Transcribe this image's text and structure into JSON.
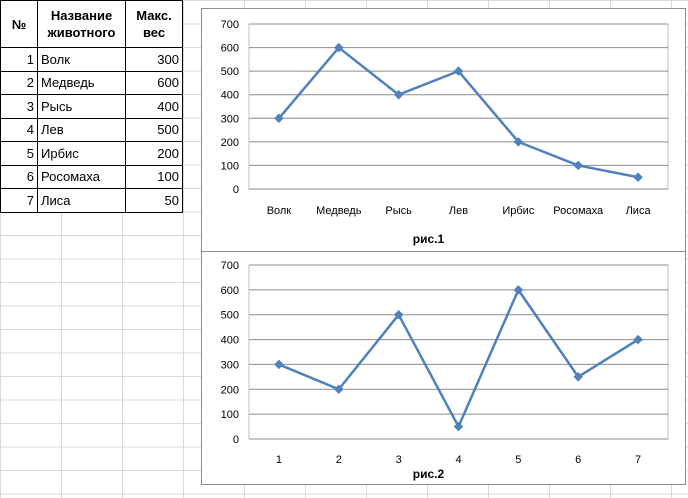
{
  "table": {
    "headers": {
      "num": "№",
      "name": "Название животного",
      "weight": "Макс. вес"
    },
    "rows": [
      {
        "num": "1",
        "name": "Волк",
        "weight": "300"
      },
      {
        "num": "2",
        "name": "Медведь",
        "weight": "600"
      },
      {
        "num": "3",
        "name": "Рысь",
        "weight": "400"
      },
      {
        "num": "4",
        "name": "Лев",
        "weight": "500"
      },
      {
        "num": "5",
        "name": "Ирбис",
        "weight": "200"
      },
      {
        "num": "6",
        "name": "Росомаха",
        "weight": "100"
      },
      {
        "num": "7",
        "name": "Лиса",
        "weight": "50"
      }
    ]
  },
  "chart_data": [
    {
      "type": "line",
      "caption": "рис.1",
      "categories": [
        "Волк",
        "Медведь",
        "Рысь",
        "Лев",
        "Ирбис",
        "Росомаха",
        "Лиса"
      ],
      "values": [
        300,
        600,
        400,
        500,
        200,
        100,
        50
      ],
      "ylim": [
        0,
        700
      ],
      "yticks": [
        0,
        100,
        200,
        300,
        400,
        500,
        600,
        700
      ],
      "grid": true,
      "marker": "diamond",
      "color": "#4f81bd",
      "legend": "none"
    },
    {
      "type": "line",
      "caption": "рис.2",
      "categories": [
        "1",
        "2",
        "3",
        "4",
        "5",
        "6",
        "7"
      ],
      "values": [
        300,
        200,
        500,
        50,
        600,
        250,
        400
      ],
      "ylim": [
        0,
        700
      ],
      "yticks": [
        0,
        100,
        200,
        300,
        400,
        500,
        600,
        700
      ],
      "grid": true,
      "marker": "diamond",
      "color": "#4f81bd",
      "legend": "none"
    }
  ]
}
